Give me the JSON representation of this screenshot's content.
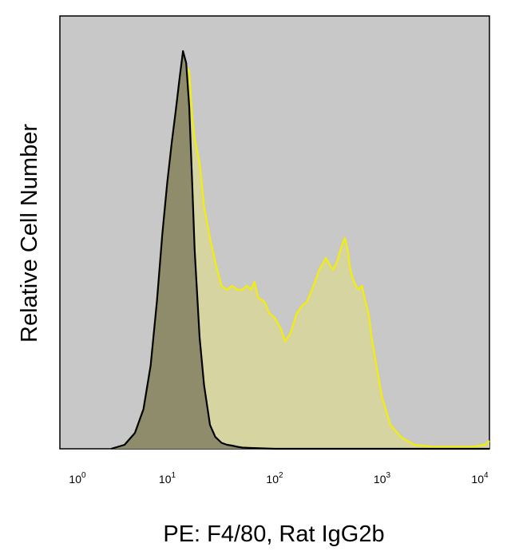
{
  "chart_data": {
    "type": "area",
    "title": "",
    "xlabel": "PE: F4/80, Rat IgG2b",
    "ylabel": "Relative Cell Number",
    "x_scale": "log",
    "xlim": [
      1,
      10000
    ],
    "ylim": [
      0,
      100
    ],
    "x_tick_labels": [
      {
        "base": "10",
        "exp": "0"
      },
      {
        "base": "10",
        "exp": "1"
      },
      {
        "base": "10",
        "exp": "2"
      },
      {
        "base": "10",
        "exp": "3"
      },
      {
        "base": "10",
        "exp": "4"
      }
    ],
    "x_tick_values": [
      1,
      10,
      100,
      1000,
      10000
    ],
    "y_ticks_shown": false,
    "grid": false,
    "legend": "none",
    "plot_background": "#c8c8c8",
    "series": [
      {
        "color": "#f2ee0a",
        "fill": "#d6d4a0",
        "x": [
          3,
          4,
          5,
          6,
          7,
          8,
          9,
          10,
          11,
          12,
          13,
          14,
          15,
          16,
          17,
          18,
          20,
          22,
          25,
          28,
          32,
          36,
          40,
          45,
          50,
          55,
          60,
          65,
          70,
          80,
          90,
          100,
          115,
          125,
          140,
          160,
          180,
          200,
          230,
          260,
          300,
          330,
          350,
          380,
          420,
          450,
          480,
          500,
          530,
          570,
          610,
          650,
          700,
          750,
          800,
          900,
          1000,
          1200,
          1500,
          2000,
          3000,
          5000,
          7000,
          9000,
          10000
        ],
        "y": [
          0,
          1,
          4,
          10,
          21,
          37,
          54,
          67,
          77,
          85,
          89,
          91,
          96,
          95,
          84,
          78,
          72,
          61,
          53,
          47,
          41,
          40,
          41,
          40,
          40,
          41,
          40,
          42,
          38,
          37,
          34,
          33,
          30,
          27,
          29,
          34,
          36,
          37,
          41,
          45,
          48,
          46,
          45,
          47,
          51,
          53,
          50,
          46,
          43,
          41,
          40,
          41,
          37,
          34,
          28,
          20,
          13,
          6,
          3,
          1,
          0.5,
          0.5,
          0.5,
          1,
          2
        ]
      },
      {
        "color": "#000000",
        "fill": "#8f8c6b",
        "x": [
          3,
          4,
          5,
          6,
          7,
          8,
          9,
          10,
          11,
          12,
          13,
          14,
          15,
          16,
          17,
          18,
          20,
          22,
          25,
          28,
          32,
          36,
          40,
          45,
          50,
          60,
          100,
          200,
          500,
          1000,
          2000,
          5000,
          10000
        ],
        "y": [
          0,
          1,
          4,
          10,
          21,
          37,
          54,
          67,
          77,
          85,
          93,
          100,
          97,
          86,
          68,
          50,
          28,
          16,
          6,
          3,
          1.5,
          1,
          0.8,
          0.5,
          0.3,
          0.2,
          0,
          0,
          0,
          0,
          0,
          0,
          0
        ]
      }
    ]
  }
}
